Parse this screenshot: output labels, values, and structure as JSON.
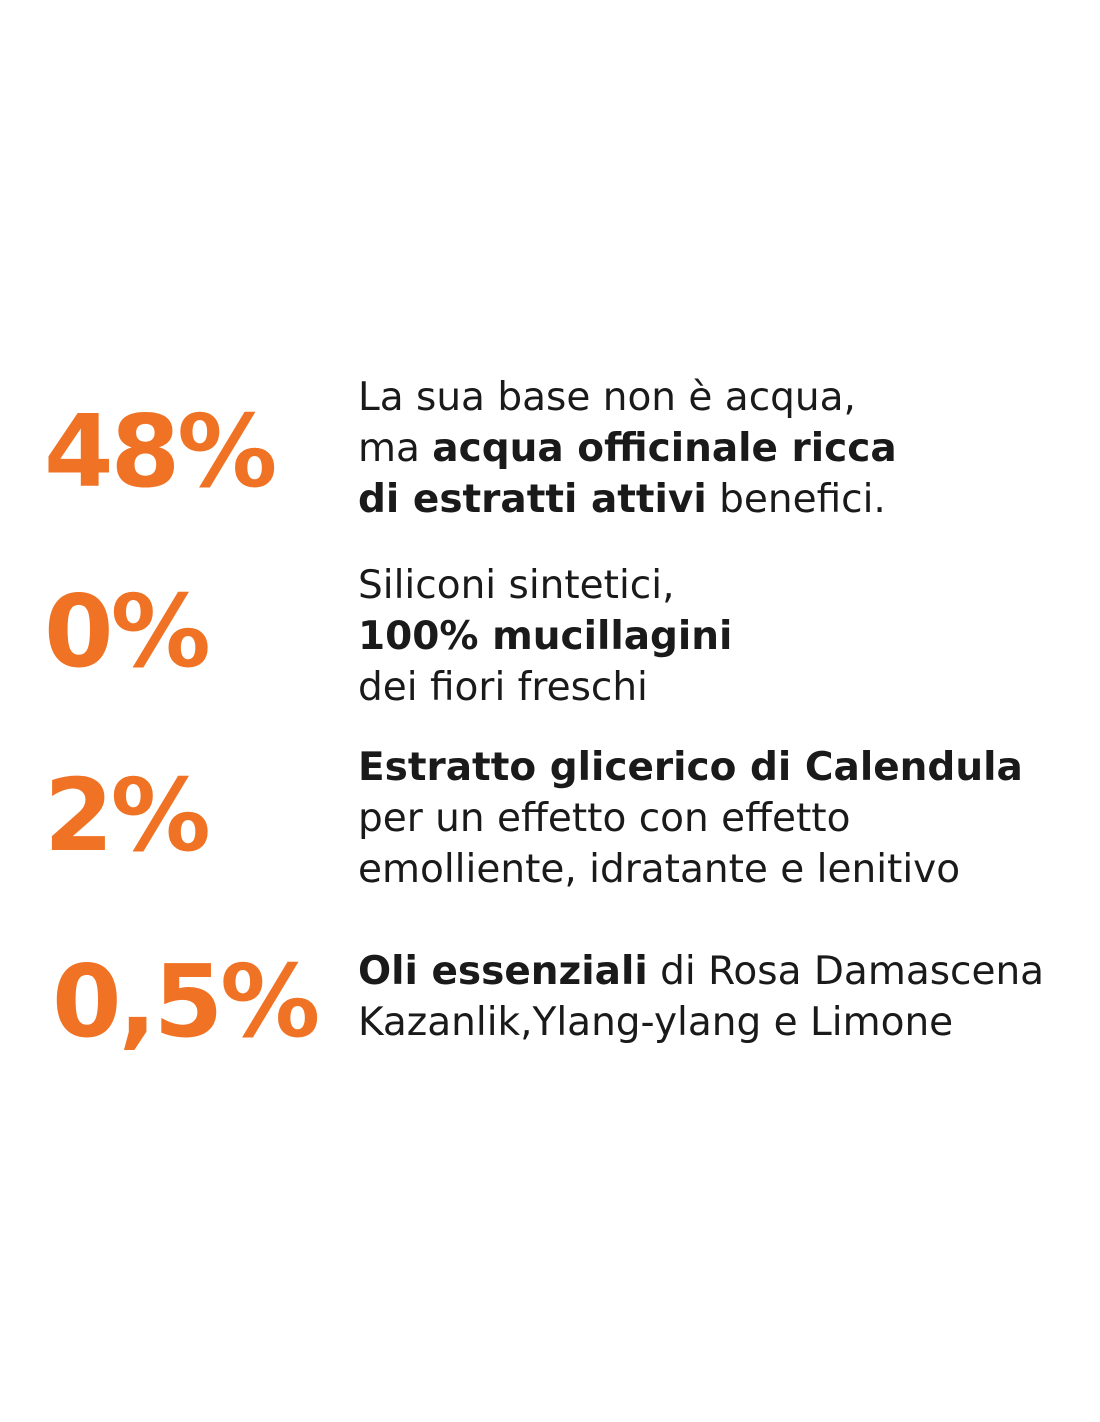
{
  "accent_color": "#f07325",
  "stats": [
    {
      "percent": "48%",
      "lines": [
        [
          {
            "text": "La sua base non è acqua,",
            "bold": false
          }
        ],
        [
          {
            "text": "ma ",
            "bold": false
          },
          {
            "text": "acqua officinale ricca",
            "bold": true
          }
        ],
        [
          {
            "text": "di estratti attivi",
            "bold": true
          },
          {
            "text": " benefici.",
            "bold": false
          }
        ]
      ]
    },
    {
      "percent": "0%",
      "lines": [
        [
          {
            "text": "Siliconi sintetici,",
            "bold": false
          }
        ],
        [
          {
            "text": "100% mucillagini",
            "bold": true
          }
        ],
        [
          {
            "text": "dei fiori freschi",
            "bold": false
          }
        ]
      ]
    },
    {
      "percent": "2%",
      "lines": [
        [
          {
            "text": "Estratto glicerico di Calendula",
            "bold": true
          }
        ],
        [
          {
            "text": "per un effetto con effetto",
            "bold": false
          }
        ],
        [
          {
            "text": "emolliente, idratante e lenitivo",
            "bold": false
          }
        ]
      ]
    },
    {
      "percent": "0,5%",
      "lines": [
        [
          {
            "text": "Oli essenziali",
            "bold": true
          },
          {
            "text": " di Rosa Damascena",
            "bold": false
          }
        ],
        [
          {
            "text": "Kazanlik,Ylang-ylang e Limone",
            "bold": false
          }
        ]
      ]
    }
  ]
}
